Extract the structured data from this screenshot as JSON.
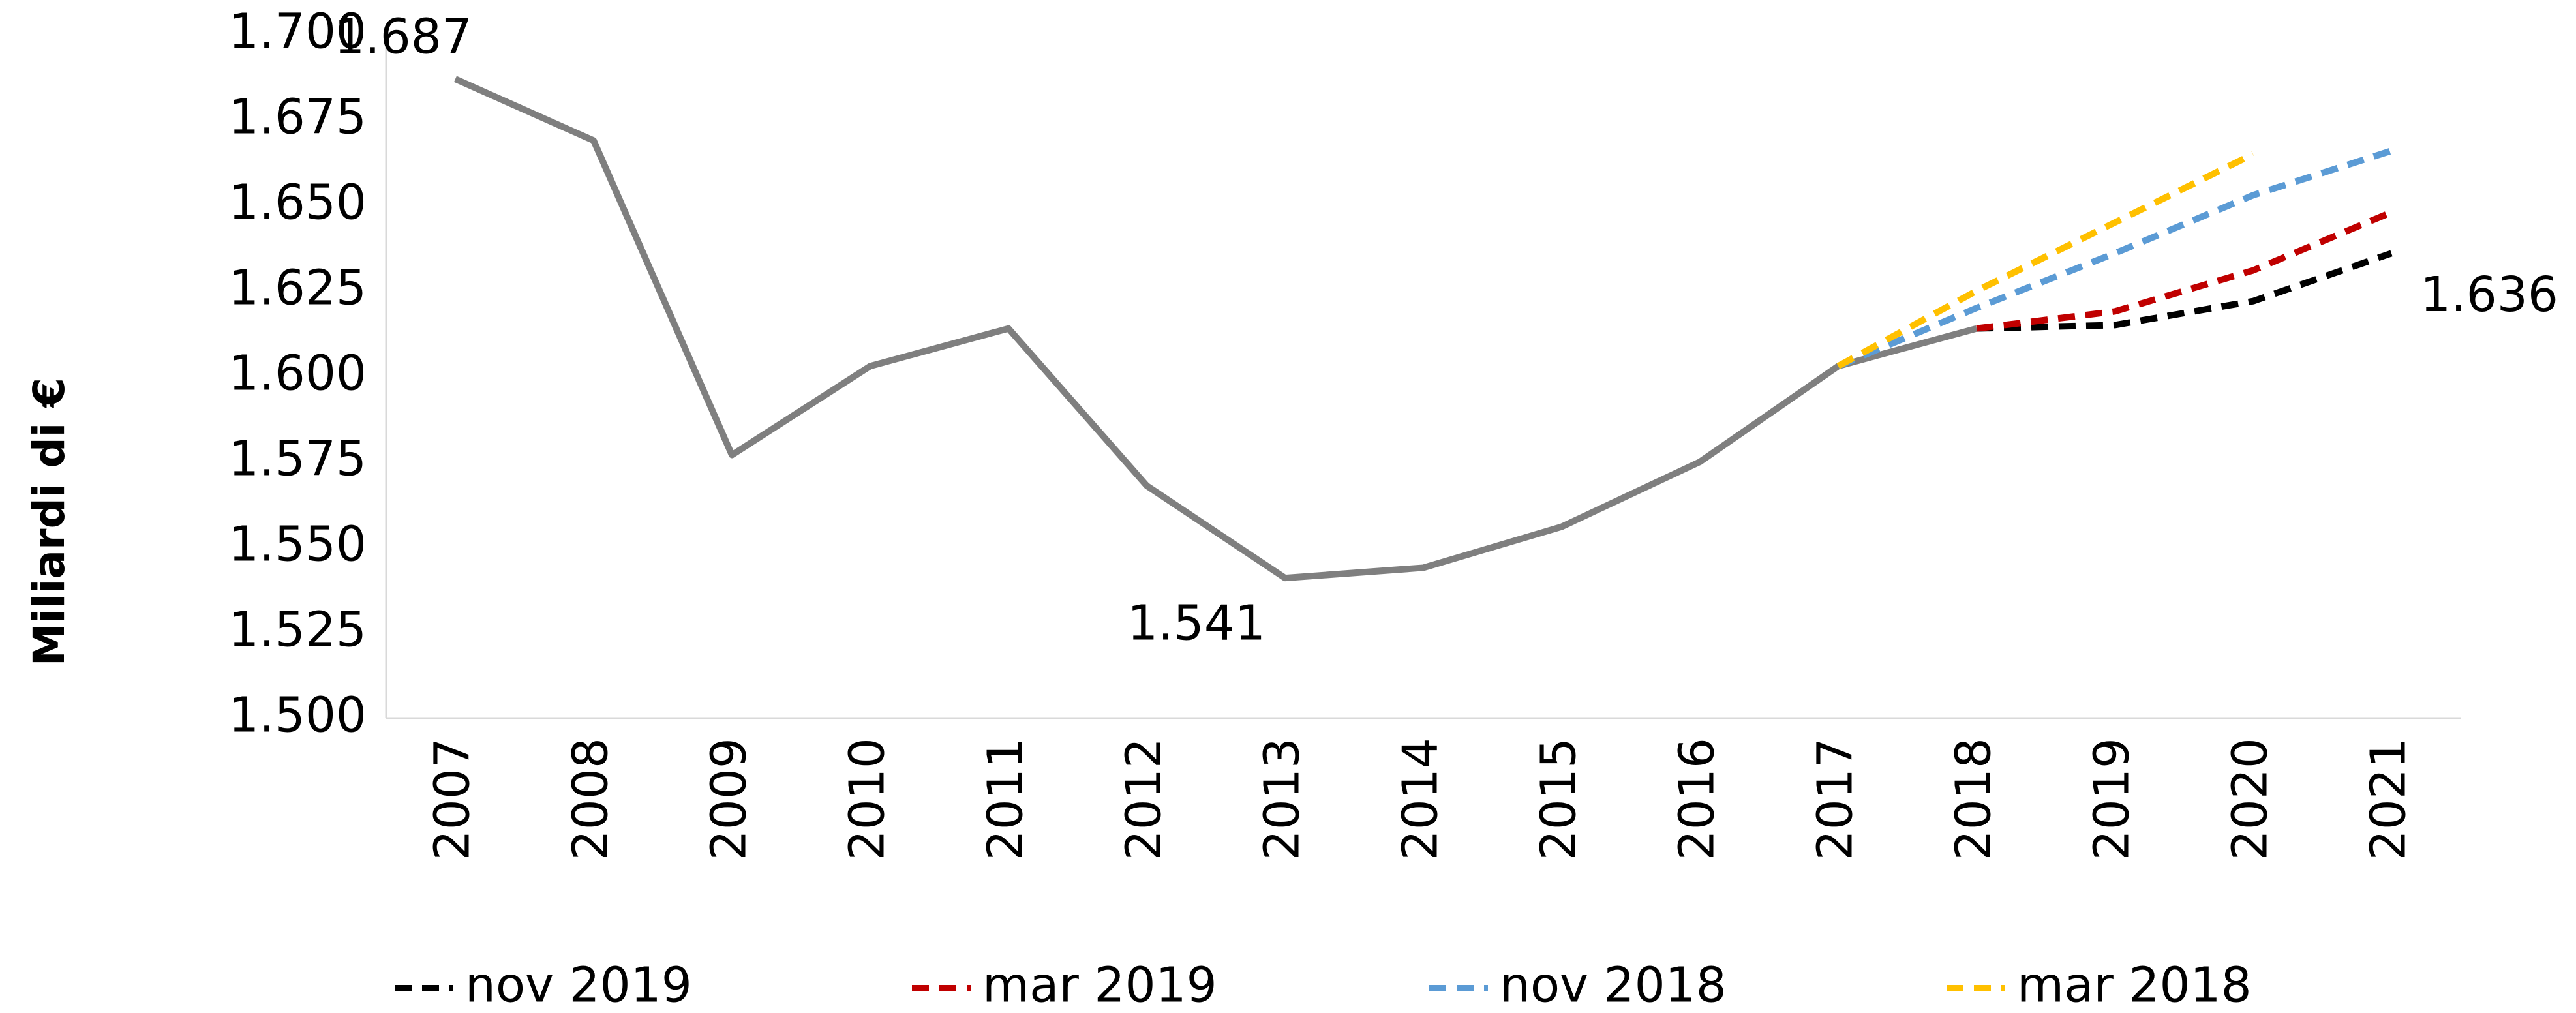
{
  "chart_data": {
    "type": "line",
    "y_label": "Miliardi di €",
    "categories": [
      "2007",
      "2008",
      "2009",
      "2010",
      "2011",
      "2012",
      "2013",
      "2014",
      "2015",
      "2016",
      "2017",
      "2018",
      "2019",
      "2020",
      "2021"
    ],
    "series": [
      {
        "color": "#7f7f7f",
        "dashed": false,
        "values": [
          1687,
          1669,
          1577,
          1603,
          1614,
          1568,
          1541,
          1544,
          1556,
          1575,
          1603,
          1614,
          null,
          null,
          null
        ],
        "value_labels": [
          "1.687",
          null,
          null,
          null,
          null,
          null,
          "1.541",
          null,
          null,
          null,
          null,
          null,
          null,
          null,
          null
        ]
      },
      {
        "name": "nov 2019",
        "color": "#000000",
        "dashed": true,
        "values": [
          null,
          null,
          null,
          null,
          null,
          null,
          null,
          null,
          null,
          null,
          null,
          1614,
          1615,
          1622,
          1636
        ],
        "value_labels": [
          null,
          null,
          null,
          null,
          null,
          null,
          null,
          null,
          null,
          null,
          null,
          null,
          null,
          null,
          "1.636"
        ]
      },
      {
        "name": "mar 2019",
        "color": "#c00000",
        "dashed": true,
        "values": [
          null,
          null,
          null,
          null,
          null,
          null,
          null,
          null,
          null,
          null,
          null,
          1614,
          1619,
          1631,
          1648
        ]
      },
      {
        "name": "nov 2018",
        "color": "#5b9bd5",
        "dashed": true,
        "values": [
          null,
          null,
          null,
          null,
          null,
          null,
          null,
          null,
          null,
          null,
          1603,
          1620,
          1636,
          1653,
          1666
        ]
      },
      {
        "name": "mar 2018",
        "color": "#ffc000",
        "dashed": true,
        "values": [
          null,
          null,
          null,
          null,
          null,
          null,
          null,
          null,
          null,
          null,
          1603,
          1625,
          1645,
          1665,
          null
        ]
      }
    ],
    "ylim": [
      1500,
      1700
    ],
    "yticks": [
      {
        "value": 1500,
        "label": "1.500"
      },
      {
        "value": 1525,
        "label": "1.525"
      },
      {
        "value": 1550,
        "label": "1.550"
      },
      {
        "value": 1575,
        "label": "1.575"
      },
      {
        "value": 1600,
        "label": "1.600"
      },
      {
        "value": 1625,
        "label": "1.625"
      },
      {
        "value": 1650,
        "label": "1.650"
      },
      {
        "value": 1675,
        "label": "1.675"
      },
      {
        "value": 1700,
        "label": "1.700"
      }
    ],
    "grid": false,
    "legend": "bottom"
  }
}
